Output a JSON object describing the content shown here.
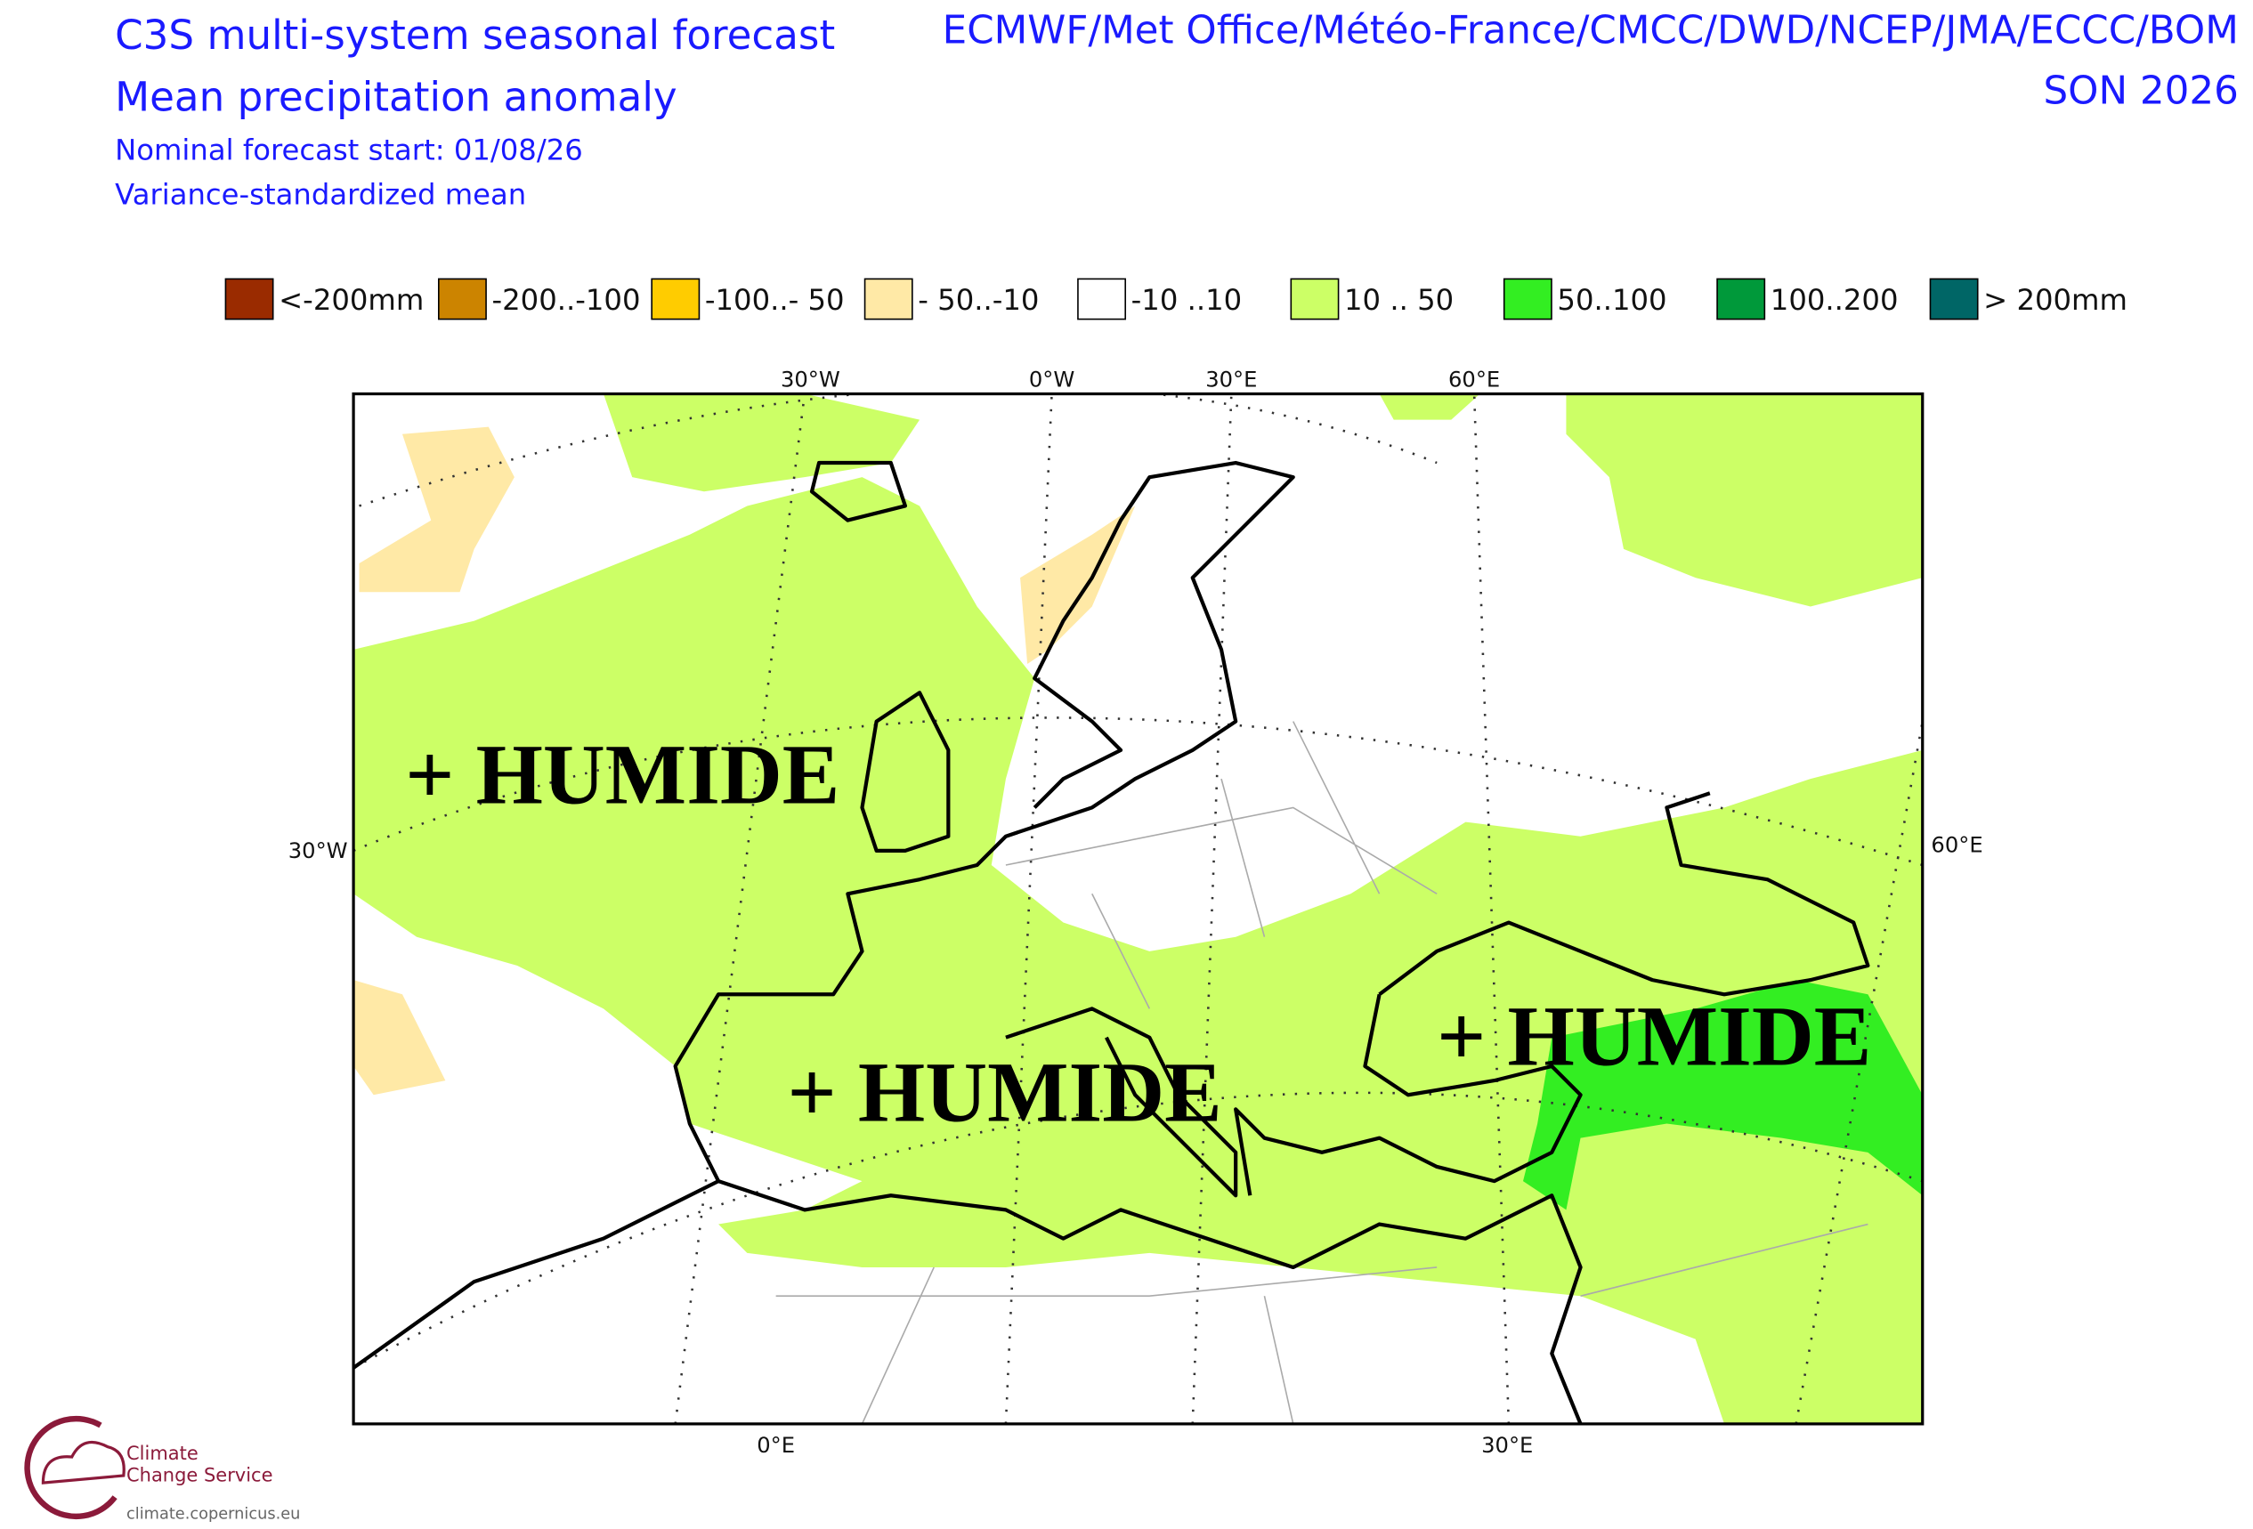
{
  "header": {
    "title": "C3S multi-system seasonal forecast",
    "subtitle": "Mean precipitation anomaly",
    "forecast_start": "Nominal forecast start: 01/08/26",
    "method": "Variance-standardized mean",
    "centres": "ECMWF/Met Office/Météo-France/CMCC/DWD/NCEP/JMA/ECCC/BOM",
    "season": "SON 2026"
  },
  "legend": [
    {
      "label": "<-200mm",
      "color": "#9a2b00"
    },
    {
      "label": "-200..-100",
      "color": "#cc8400"
    },
    {
      "label": "-100..- 50",
      "color": "#ffcc00"
    },
    {
      "label": "- 50..-10",
      "color": "#ffe9a6"
    },
    {
      "label": "-10 ..10",
      "color": "#ffffff"
    },
    {
      "label": "10 .. 50",
      "color": "#ccff66"
    },
    {
      "label": "50..100",
      "color": "#33ee22"
    },
    {
      "label": "100..200",
      "color": "#00993a"
    },
    {
      "label": "> 200mm",
      "color": "#006666"
    }
  ],
  "map": {
    "top_labels": [
      "30°W",
      "0°W",
      "30°E",
      "60°E"
    ],
    "left_label": "30°W",
    "right_label": "60°E",
    "bottom_labels": [
      "0°E",
      "30°E"
    ],
    "annotations": [
      "+ HUMIDE",
      "+ HUMIDE",
      "+ HUMIDE"
    ]
  },
  "logo": {
    "line1": "Climate",
    "line2": "Change Service",
    "url": "climate.copernicus.eu"
  }
}
